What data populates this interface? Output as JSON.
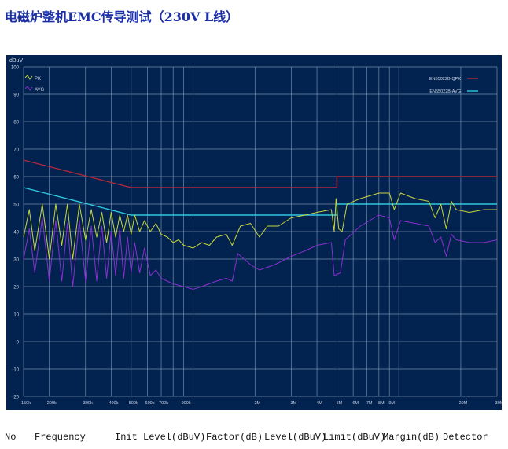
{
  "title": "电磁炉整机EMC传导测试（230V L线）",
  "chart_data": {
    "type": "line",
    "title": "",
    "ylabel": "dBuV",
    "xscale": "log",
    "xunit": "MHz",
    "xlim": [
      0.15,
      30
    ],
    "ylim": [
      -20,
      100
    ],
    "yticks": [
      100,
      90,
      80,
      70,
      60,
      50,
      40,
      30,
      20,
      10,
      0,
      -10,
      -20
    ],
    "xgrid": [
      0.15,
      0.2,
      0.3,
      0.4,
      0.5,
      0.6,
      0.7,
      0.8,
      0.9,
      1,
      2,
      3,
      4,
      5,
      6,
      7,
      8,
      9,
      10,
      20,
      30
    ],
    "xticks": [
      {
        "v": 0.15,
        "label": "150k"
      },
      {
        "v": 0.2,
        "label": "200k"
      },
      {
        "v": 0.3,
        "label": "300k"
      },
      {
        "v": 0.4,
        "label": "400k"
      },
      {
        "v": 0.5,
        "label": "500k"
      },
      {
        "v": 0.6,
        "label": "600k"
      },
      {
        "v": 0.7,
        "label": "700k"
      },
      {
        "v": 0.9,
        "label": "900k"
      },
      {
        "v": 2,
        "label": "2M"
      },
      {
        "v": 3,
        "label": "3M"
      },
      {
        "v": 4,
        "label": "4M"
      },
      {
        "v": 5,
        "label": "5M"
      },
      {
        "v": 6,
        "label": "6M"
      },
      {
        "v": 7,
        "label": "7M"
      },
      {
        "v": 8,
        "label": "8M"
      },
      {
        "v": 9,
        "label": "9M"
      },
      {
        "v": 20,
        "label": "20M"
      },
      {
        "v": 30,
        "label": "30M"
      }
    ],
    "grid": true,
    "background": "#02234f",
    "legend_traces": {
      "placement": "top-left"
    },
    "legend_limits": {
      "placement": "top-right"
    },
    "series": [
      {
        "name": "PK",
        "color": "#c8d43c",
        "points": [
          [
            0.15,
            38
          ],
          [
            0.16,
            48
          ],
          [
            0.17,
            33
          ],
          [
            0.185,
            50
          ],
          [
            0.2,
            30
          ],
          [
            0.215,
            50
          ],
          [
            0.23,
            35
          ],
          [
            0.245,
            50
          ],
          [
            0.26,
            30
          ],
          [
            0.28,
            50
          ],
          [
            0.3,
            37
          ],
          [
            0.32,
            48
          ],
          [
            0.34,
            38
          ],
          [
            0.36,
            47
          ],
          [
            0.38,
            36
          ],
          [
            0.4,
            47
          ],
          [
            0.42,
            38
          ],
          [
            0.44,
            46
          ],
          [
            0.46,
            40
          ],
          [
            0.48,
            46
          ],
          [
            0.5,
            39
          ],
          [
            0.52,
            46
          ],
          [
            0.55,
            40
          ],
          [
            0.58,
            44
          ],
          [
            0.62,
            40
          ],
          [
            0.66,
            43
          ],
          [
            0.7,
            39
          ],
          [
            0.75,
            38
          ],
          [
            0.8,
            36
          ],
          [
            0.85,
            37
          ],
          [
            0.9,
            35
          ],
          [
            1.0,
            34
          ],
          [
            1.1,
            36
          ],
          [
            1.2,
            35
          ],
          [
            1.3,
            38
          ],
          [
            1.45,
            39
          ],
          [
            1.55,
            35
          ],
          [
            1.7,
            42
          ],
          [
            1.9,
            43
          ],
          [
            2.1,
            38
          ],
          [
            2.3,
            42
          ],
          [
            2.6,
            42
          ],
          [
            3,
            45
          ],
          [
            3.5,
            46
          ],
          [
            4,
            47
          ],
          [
            4.7,
            48
          ],
          [
            4.85,
            40
          ],
          [
            4.95,
            52
          ],
          [
            5.1,
            41
          ],
          [
            5.3,
            40
          ],
          [
            5.6,
            50
          ],
          [
            6.5,
            52
          ],
          [
            8,
            54
          ],
          [
            9,
            54
          ],
          [
            9.5,
            48
          ],
          [
            10.2,
            54
          ],
          [
            12,
            52
          ],
          [
            14,
            51
          ],
          [
            15,
            45
          ],
          [
            16,
            50
          ],
          [
            17,
            41
          ],
          [
            18,
            51
          ],
          [
            19,
            48
          ],
          [
            22,
            47
          ],
          [
            26,
            48
          ],
          [
            30,
            48
          ]
        ]
      },
      {
        "name": "AVG",
        "color": "#8a2fd0",
        "points": [
          [
            0.15,
            30
          ],
          [
            0.16,
            41
          ],
          [
            0.17,
            25
          ],
          [
            0.185,
            45
          ],
          [
            0.2,
            22
          ],
          [
            0.215,
            44
          ],
          [
            0.23,
            22
          ],
          [
            0.245,
            43
          ],
          [
            0.26,
            20
          ],
          [
            0.28,
            44
          ],
          [
            0.3,
            22
          ],
          [
            0.32,
            42
          ],
          [
            0.34,
            22
          ],
          [
            0.36,
            42
          ],
          [
            0.38,
            23
          ],
          [
            0.4,
            40
          ],
          [
            0.42,
            24
          ],
          [
            0.44,
            41
          ],
          [
            0.46,
            23
          ],
          [
            0.48,
            38
          ],
          [
            0.5,
            25
          ],
          [
            0.52,
            36
          ],
          [
            0.55,
            25
          ],
          [
            0.58,
            34
          ],
          [
            0.62,
            24
          ],
          [
            0.66,
            26
          ],
          [
            0.7,
            23
          ],
          [
            0.8,
            21
          ],
          [
            0.9,
            20
          ],
          [
            1.0,
            19
          ],
          [
            1.1,
            20
          ],
          [
            1.3,
            22
          ],
          [
            1.45,
            23
          ],
          [
            1.55,
            22
          ],
          [
            1.65,
            32
          ],
          [
            1.9,
            28
          ],
          [
            2.1,
            26
          ],
          [
            2.5,
            28
          ],
          [
            3,
            31
          ],
          [
            3.5,
            33
          ],
          [
            4,
            35
          ],
          [
            4.7,
            36
          ],
          [
            4.85,
            24
          ],
          [
            5.2,
            25
          ],
          [
            5.5,
            37
          ],
          [
            6.5,
            42
          ],
          [
            8,
            46
          ],
          [
            9,
            45
          ],
          [
            9.5,
            37
          ],
          [
            10.2,
            44
          ],
          [
            12,
            43
          ],
          [
            14,
            42
          ],
          [
            15,
            36
          ],
          [
            16,
            38
          ],
          [
            17,
            31
          ],
          [
            18,
            39
          ],
          [
            19,
            37
          ],
          [
            22,
            36
          ],
          [
            26,
            36
          ],
          [
            30,
            37
          ]
        ]
      }
    ],
    "limits": [
      {
        "name": "EN55022B-QPK",
        "color": "#b0283c",
        "points": [
          [
            0.15,
            66
          ],
          [
            0.5,
            56
          ],
          [
            5,
            56
          ],
          [
            5,
            60
          ],
          [
            30,
            60
          ]
        ]
      },
      {
        "name": "EN55022B-AVG",
        "color": "#2fc8e0",
        "points": [
          [
            0.15,
            56
          ],
          [
            0.5,
            46
          ],
          [
            5,
            46
          ],
          [
            5,
            50
          ],
          [
            30,
            50
          ]
        ]
      }
    ]
  },
  "table_header": [
    "No",
    "Frequency",
    "Init Level(dBuV)",
    "Factor(dB)",
    "Level(dBuV)",
    "Limit(dBuV)",
    "Margin(dB)",
    "Detector"
  ]
}
